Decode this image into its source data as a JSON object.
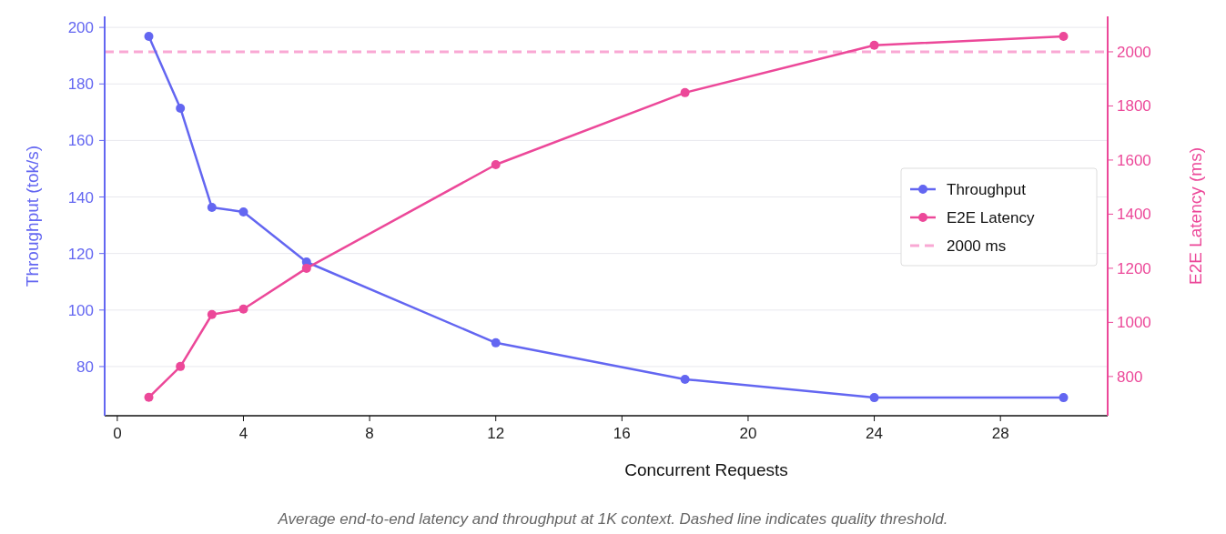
{
  "chart_data": {
    "type": "line",
    "xlabel": "Concurrent Requests",
    "ylabel": "Throughput (tok/s)",
    "y2label": "E2E Latency (ms)",
    "x": [
      1,
      2,
      3,
      4,
      6,
      12,
      18,
      24,
      30
    ],
    "series": [
      {
        "name": "Throughput",
        "color": "#6366f1",
        "values": [
          196.8,
          171.4,
          136.3,
          134.7,
          117,
          88.4,
          75.5,
          69,
          69
        ]
      },
      {
        "name": "E2E Latency",
        "color": "#ec4899",
        "axis": "y2",
        "values": [
          723,
          837,
          1029,
          1049,
          1200,
          1583,
          1849,
          2024,
          2057
        ]
      }
    ],
    "xlim": [
      -0.4,
      31.4
    ],
    "xticks": [
      0,
      4,
      8,
      12,
      16,
      20,
      24,
      28
    ],
    "ylim": [
      62.6,
      203.9
    ],
    "yticks": [
      80,
      100,
      120,
      140,
      160,
      180,
      200
    ],
    "y2lim": [
      655,
      2131
    ],
    "y2ticks": [
      800,
      1000,
      1200,
      1400,
      1600,
      1800,
      2000
    ],
    "ref_lines": [
      {
        "axis": "y2",
        "value": 2000,
        "label": "2000 ms",
        "color": "#f9a8d4",
        "line_style": "dashed"
      }
    ],
    "grid": "y",
    "legend": "right",
    "marker": "circle",
    "line_style": "solid",
    "annotations": [
      "Average end-to-end latency and throughput at 1K context. Dashed line indicates quality threshold."
    ]
  }
}
